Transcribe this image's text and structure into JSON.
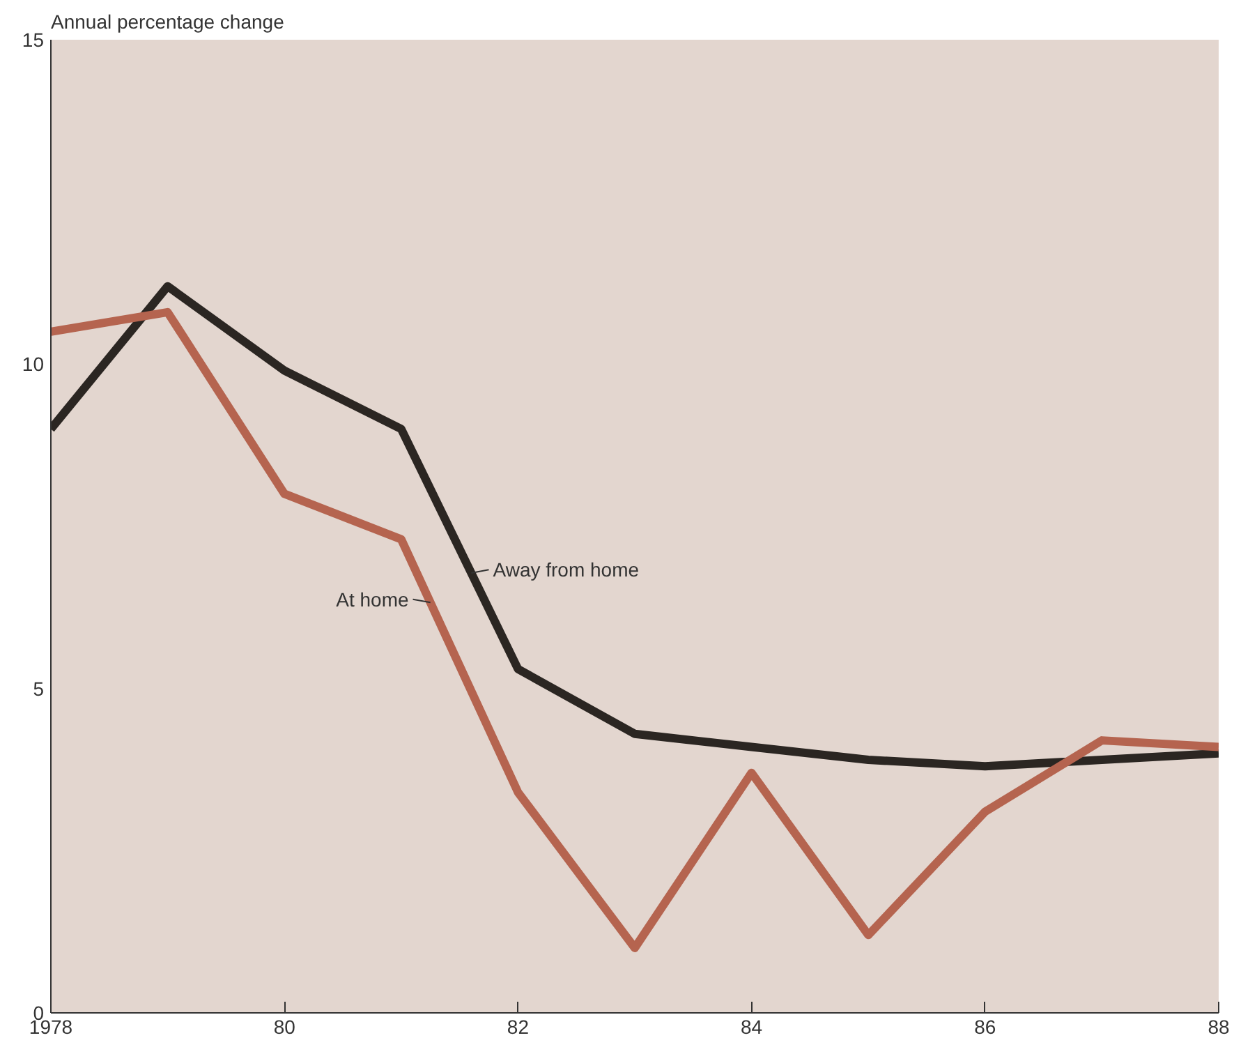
{
  "chart_data": {
    "type": "line",
    "ylabel": "Annual percentage change",
    "x": [
      1978,
      1979,
      1980,
      1981,
      1982,
      1983,
      1984,
      1985,
      1986,
      1987,
      1988
    ],
    "series": [
      {
        "name": "Away from home",
        "color": "#2b2622",
        "values": [
          9.0,
          11.2,
          9.9,
          9.0,
          5.3,
          4.3,
          4.1,
          3.9,
          3.8,
          3.9,
          4.0
        ]
      },
      {
        "name": "At home",
        "color": "#b5644f",
        "values": [
          10.5,
          10.8,
          8.0,
          7.3,
          3.4,
          1.0,
          3.7,
          1.2,
          3.1,
          4.2,
          4.1
        ]
      }
    ],
    "xlim": [
      1978,
      1988
    ],
    "ylim": [
      0,
      15
    ],
    "xticks": [
      {
        "value": 1978,
        "label": "1978"
      },
      {
        "value": 1980,
        "label": "80"
      },
      {
        "value": 1982,
        "label": "82"
      },
      {
        "value": 1984,
        "label": "84"
      },
      {
        "value": 1986,
        "label": "86"
      },
      {
        "value": 1988,
        "label": "88"
      }
    ],
    "yticks": [
      0,
      5,
      10,
      15
    ],
    "grid": false,
    "legend": false,
    "marker": "none",
    "line_style": "solid"
  }
}
